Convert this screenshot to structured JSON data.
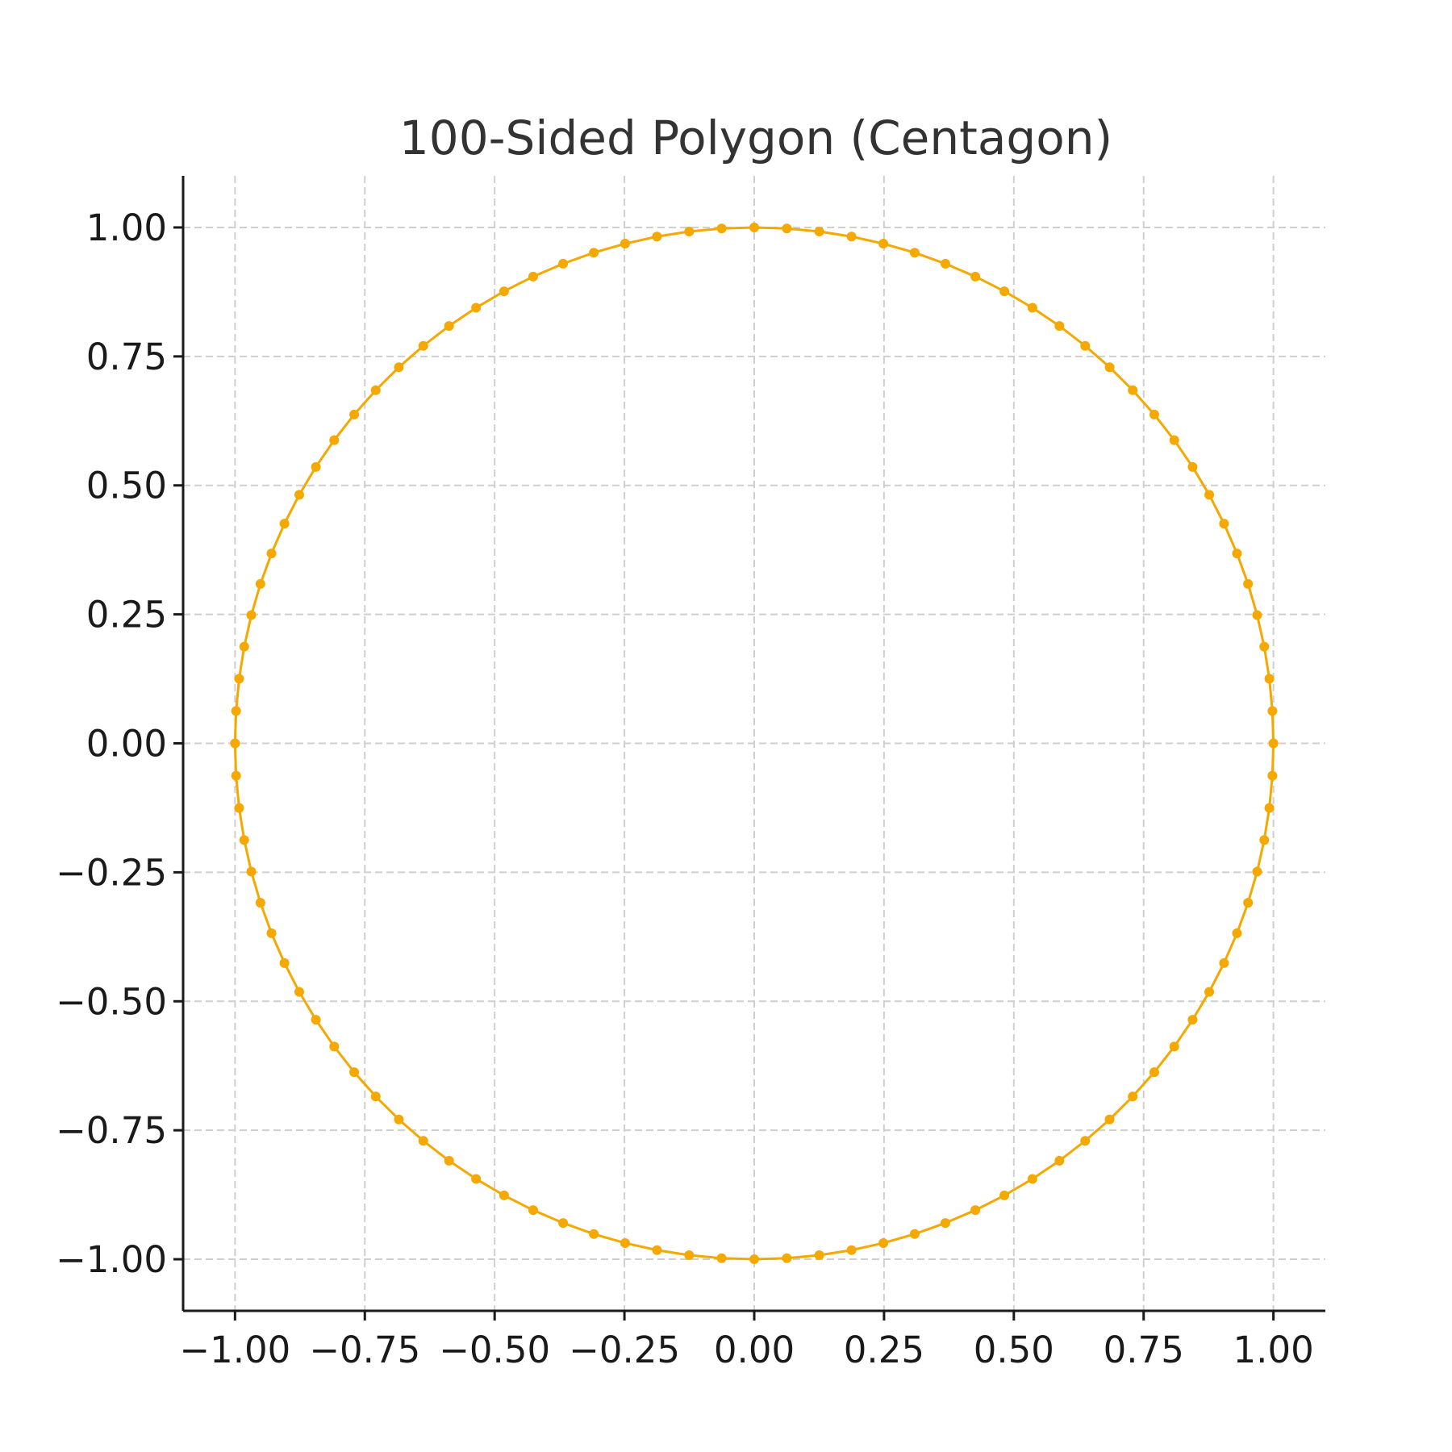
{
  "chart_data": {
    "type": "line",
    "title": "100-Sided Polygon (Centagon)",
    "xlabel": "",
    "ylabel": "",
    "xlim": [
      -1.1,
      1.1
    ],
    "ylim": [
      -1.1,
      1.1
    ],
    "grid": true,
    "aspect": "equal",
    "x_ticks": [
      -1.0,
      -0.75,
      -0.5,
      -0.25,
      0.0,
      0.25,
      0.5,
      0.75,
      1.0
    ],
    "x_tick_labels": [
      "−1.00",
      "−0.75",
      "−0.50",
      "−0.25",
      "0.00",
      "0.25",
      "0.50",
      "0.75",
      "1.00"
    ],
    "y_ticks": [
      -1.0,
      -0.75,
      -0.5,
      -0.25,
      0.0,
      0.25,
      0.5,
      0.75,
      1.0
    ],
    "y_tick_labels": [
      "−1.00",
      "−0.75",
      "−0.50",
      "−0.25",
      "0.00",
      "0.25",
      "0.50",
      "0.75",
      "1.00"
    ],
    "color": "#f5a800",
    "marker": "circle",
    "series": [
      {
        "closed": true,
        "points": [
          [
            1.0,
            0.0
          ],
          [
            0.998,
            0.0628
          ],
          [
            0.9921,
            0.1253
          ],
          [
            0.9823,
            0.1874
          ],
          [
            0.9686,
            0.2487
          ],
          [
            0.9511,
            0.309
          ],
          [
            0.9298,
            0.3681
          ],
          [
            0.9048,
            0.4258
          ],
          [
            0.8763,
            0.4818
          ],
          [
            0.8443,
            0.5358
          ],
          [
            0.809,
            0.5878
          ],
          [
            0.7705,
            0.6374
          ],
          [
            0.729,
            0.6845
          ],
          [
            0.6845,
            0.729
          ],
          [
            0.6374,
            0.7705
          ],
          [
            0.5878,
            0.809
          ],
          [
            0.5358,
            0.8443
          ],
          [
            0.4818,
            0.8763
          ],
          [
            0.4258,
            0.9048
          ],
          [
            0.3681,
            0.9298
          ],
          [
            0.309,
            0.9511
          ],
          [
            0.2487,
            0.9686
          ],
          [
            0.1874,
            0.9823
          ],
          [
            0.1253,
            0.9921
          ],
          [
            0.0628,
            0.998
          ],
          [
            0.0,
            1.0
          ],
          [
            -0.0628,
            0.998
          ],
          [
            -0.1253,
            0.9921
          ],
          [
            -0.1874,
            0.9823
          ],
          [
            -0.2487,
            0.9686
          ],
          [
            -0.309,
            0.9511
          ],
          [
            -0.3681,
            0.9298
          ],
          [
            -0.4258,
            0.9048
          ],
          [
            -0.4818,
            0.8763
          ],
          [
            -0.5358,
            0.8443
          ],
          [
            -0.5878,
            0.809
          ],
          [
            -0.6374,
            0.7705
          ],
          [
            -0.6845,
            0.729
          ],
          [
            -0.729,
            0.6845
          ],
          [
            -0.7705,
            0.6374
          ],
          [
            -0.809,
            0.5878
          ],
          [
            -0.8443,
            0.5358
          ],
          [
            -0.8763,
            0.4818
          ],
          [
            -0.9048,
            0.4258
          ],
          [
            -0.9298,
            0.3681
          ],
          [
            -0.9511,
            0.309
          ],
          [
            -0.9686,
            0.2487
          ],
          [
            -0.9823,
            0.1874
          ],
          [
            -0.9921,
            0.1253
          ],
          [
            -0.998,
            0.0628
          ],
          [
            -1.0,
            0.0
          ],
          [
            -0.998,
            -0.0628
          ],
          [
            -0.9921,
            -0.1253
          ],
          [
            -0.9823,
            -0.1874
          ],
          [
            -0.9686,
            -0.2487
          ],
          [
            -0.9511,
            -0.309
          ],
          [
            -0.9298,
            -0.3681
          ],
          [
            -0.9048,
            -0.4258
          ],
          [
            -0.8763,
            -0.4818
          ],
          [
            -0.8443,
            -0.5358
          ],
          [
            -0.809,
            -0.5878
          ],
          [
            -0.7705,
            -0.6374
          ],
          [
            -0.729,
            -0.6845
          ],
          [
            -0.6845,
            -0.729
          ],
          [
            -0.6374,
            -0.7705
          ],
          [
            -0.5878,
            -0.809
          ],
          [
            -0.5358,
            -0.8443
          ],
          [
            -0.4818,
            -0.8763
          ],
          [
            -0.4258,
            -0.9048
          ],
          [
            -0.3681,
            -0.9298
          ],
          [
            -0.309,
            -0.9511
          ],
          [
            -0.2487,
            -0.9686
          ],
          [
            -0.1874,
            -0.9823
          ],
          [
            -0.1253,
            -0.9921
          ],
          [
            -0.0628,
            -0.998
          ],
          [
            0.0,
            -1.0
          ],
          [
            0.0628,
            -0.998
          ],
          [
            0.1253,
            -0.9921
          ],
          [
            0.1874,
            -0.9823
          ],
          [
            0.2487,
            -0.9686
          ],
          [
            0.309,
            -0.9511
          ],
          [
            0.3681,
            -0.9298
          ],
          [
            0.4258,
            -0.9048
          ],
          [
            0.4818,
            -0.8763
          ],
          [
            0.5358,
            -0.8443
          ],
          [
            0.5878,
            -0.809
          ],
          [
            0.6374,
            -0.7705
          ],
          [
            0.6845,
            -0.729
          ],
          [
            0.729,
            -0.6845
          ],
          [
            0.7705,
            -0.6374
          ],
          [
            0.809,
            -0.5878
          ],
          [
            0.8443,
            -0.5358
          ],
          [
            0.8763,
            -0.4818
          ],
          [
            0.9048,
            -0.4258
          ],
          [
            0.9298,
            -0.3681
          ],
          [
            0.9511,
            -0.309
          ],
          [
            0.9686,
            -0.2487
          ],
          [
            0.9823,
            -0.1874
          ],
          [
            0.9921,
            -0.1253
          ],
          [
            0.998,
            -0.0628
          ]
        ]
      }
    ]
  }
}
